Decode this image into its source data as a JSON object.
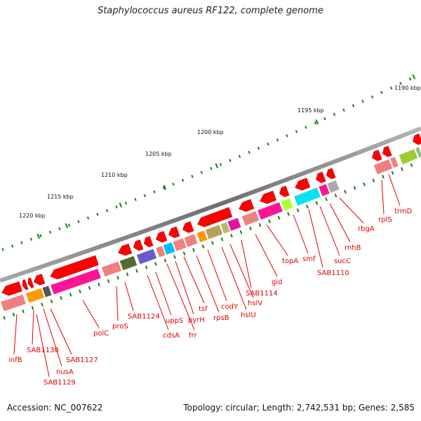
{
  "title": "Staphylococcus aureus RF122, complete genome",
  "accession": "Accession: NC_007622",
  "summary": "Topology: circular; Length: 2,742,531 bp; Genes: 2,585",
  "colors": {
    "backbone": "#8a8a8a",
    "gene": "#ff0000",
    "tick": "#1a7a1a",
    "label": "#e00000"
  },
  "scale_labels": [
    "1190 kbp",
    "1195 kbp",
    "1200 kbp",
    "1205 kbp",
    "1210 kbp",
    "1215 kbp",
    "1220 kbp"
  ],
  "gene_labels": [
    "infB",
    "SAB1130",
    "nusA",
    "SAB1129",
    "SAB1127",
    "polC",
    "proS",
    "SAB1124",
    "cdsA",
    "uppS",
    "frr",
    "pyrH",
    "tsf",
    "rpsB",
    "codY",
    "hslU",
    "hslV",
    "SAB1114",
    "gid",
    "topA",
    "smf",
    "SAB1110",
    "sucC",
    "rnhB",
    "rbgA",
    "rplS",
    "trmD"
  ]
}
